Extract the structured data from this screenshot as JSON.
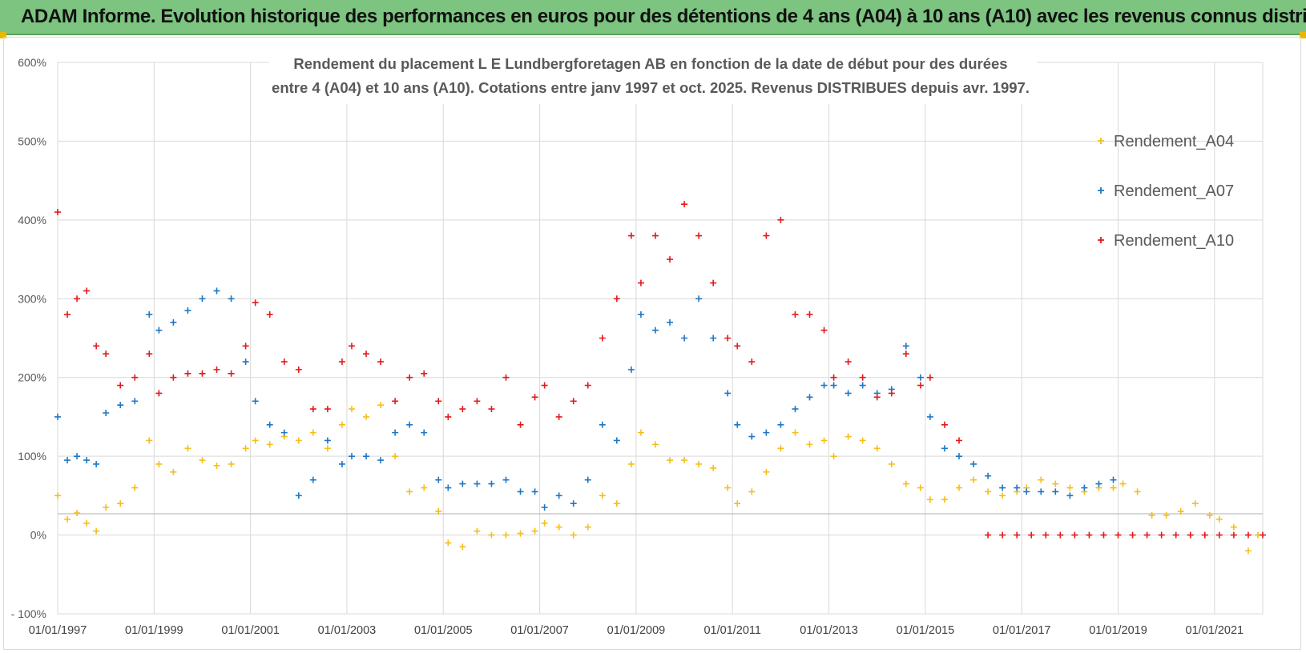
{
  "banner": {
    "title": "ADAM Informe. Evolution historique des performances en euros pour des détentions de 4 ans (A04) à 10 ans (A10) avec les revenus connus distribués"
  },
  "colors": {
    "banner_bg": "#7cc47f",
    "a04": "#f5be1b",
    "a07": "#1f77c4",
    "a10": "#e21a1c",
    "grid": "#d9d9d9"
  },
  "chart_data": {
    "type": "scatter",
    "title_line1": "Rendement du placement L E Lundbergforetagen AB en fonction de la date de début pour des durées",
    "title_line2": "entre 4 (A04) et 10 ans (A10). Cotations entre janv 1997 et oct. 2025. Revenus DISTRIBUES depuis avr.  1997.",
    "xlabel": "",
    "ylabel": "",
    "x_range": [
      1997.0,
      2022.0
    ],
    "ylim": [
      -100,
      600
    ],
    "y_ticks": [
      -100,
      0,
      100,
      200,
      300,
      400,
      500,
      600
    ],
    "y_tick_labels": [
      "- 100%",
      "0%",
      "100%",
      "200%",
      "300%",
      "400%",
      "500%",
      "600%"
    ],
    "x_ticks": [
      1997,
      1999,
      2001,
      2003,
      2005,
      2007,
      2009,
      2011,
      2013,
      2015,
      2017,
      2019,
      2021
    ],
    "x_tick_labels": [
      "01/01/1997",
      "01/01/1999",
      "01/01/2001",
      "01/01/2003",
      "01/01/2005",
      "01/01/2007",
      "01/01/2009",
      "01/01/2011",
      "01/01/2013",
      "01/01/2015",
      "01/01/2017",
      "01/01/2019",
      "01/01/2021"
    ],
    "legend_position": "right",
    "series": [
      {
        "name": "Rendement_A04",
        "key": "a04",
        "x": [
          1997.0,
          1997.2,
          1997.4,
          1997.6,
          1997.8,
          1998.0,
          1998.3,
          1998.6,
          1998.9,
          1999.1,
          1999.4,
          1999.7,
          2000.0,
          2000.3,
          2000.6,
          2000.9,
          2001.1,
          2001.4,
          2001.7,
          2002.0,
          2002.3,
          2002.6,
          2002.9,
          2003.1,
          2003.4,
          2003.7,
          2004.0,
          2004.3,
          2004.6,
          2004.9,
          2005.1,
          2005.4,
          2005.7,
          2006.0,
          2006.3,
          2006.6,
          2006.9,
          2007.1,
          2007.4,
          2007.7,
          2008.0,
          2008.3,
          2008.6,
          2008.9,
          2009.1,
          2009.4,
          2009.7,
          2010.0,
          2010.3,
          2010.6,
          2010.9,
          2011.1,
          2011.4,
          2011.7,
          2012.0,
          2012.3,
          2012.6,
          2012.9,
          2013.1,
          2013.4,
          2013.7,
          2014.0,
          2014.3,
          2014.6,
          2014.9,
          2015.1,
          2015.4,
          2015.7,
          2016.0,
          2016.3,
          2016.6,
          2016.9,
          2017.1,
          2017.4,
          2017.7,
          2018.0,
          2018.3,
          2018.6,
          2018.9,
          2019.1,
          2019.4,
          2019.7,
          2020.0,
          2020.3,
          2020.6,
          2020.9,
          2021.1,
          2021.4,
          2021.7,
          2021.9
        ],
        "y": [
          50,
          20,
          28,
          15,
          5,
          35,
          40,
          60,
          120,
          90,
          80,
          110,
          95,
          88,
          90,
          110,
          120,
          115,
          125,
          120,
          130,
          110,
          140,
          160,
          150,
          165,
          100,
          55,
          60,
          30,
          -10,
          -15,
          5,
          0,
          0,
          2,
          5,
          15,
          10,
          0,
          10,
          50,
          40,
          90,
          130,
          115,
          95,
          95,
          90,
          85,
          60,
          40,
          55,
          80,
          110,
          130,
          115,
          120,
          100,
          125,
          120,
          110,
          90,
          65,
          60,
          45,
          45,
          60,
          70,
          55,
          50,
          55,
          60,
          70,
          65,
          60,
          55,
          60,
          60,
          65,
          55,
          25,
          25,
          30,
          40,
          25,
          20,
          10,
          -20,
          0
        ]
      },
      {
        "name": "Rendement_A07",
        "key": "a07",
        "x": [
          1997.0,
          1997.2,
          1997.4,
          1997.6,
          1997.8,
          1998.0,
          1998.3,
          1998.6,
          1998.9,
          1999.1,
          1999.4,
          1999.7,
          2000.0,
          2000.3,
          2000.6,
          2000.9,
          2001.1,
          2001.4,
          2001.7,
          2002.0,
          2002.3,
          2002.6,
          2002.9,
          2003.1,
          2003.4,
          2003.7,
          2004.0,
          2004.3,
          2004.6,
          2004.9,
          2005.1,
          2005.4,
          2005.7,
          2006.0,
          2006.3,
          2006.6,
          2006.9,
          2007.1,
          2007.4,
          2007.7,
          2008.0,
          2008.3,
          2008.6,
          2008.9,
          2009.1,
          2009.4,
          2009.7,
          2010.0,
          2010.3,
          2010.6,
          2010.9,
          2011.1,
          2011.4,
          2011.7,
          2012.0,
          2012.3,
          2012.6,
          2012.9,
          2013.1,
          2013.4,
          2013.7,
          2014.0,
          2014.3,
          2014.6,
          2014.9,
          2015.1,
          2015.4,
          2015.7,
          2016.0,
          2016.3,
          2016.6,
          2016.9,
          2017.1,
          2017.4,
          2017.7,
          2018.0,
          2018.3,
          2018.6,
          2018.9
        ],
        "y": [
          150,
          95,
          100,
          95,
          90,
          155,
          165,
          170,
          280,
          260,
          270,
          285,
          300,
          310,
          300,
          220,
          170,
          140,
          130,
          50,
          70,
          120,
          90,
          100,
          100,
          95,
          130,
          140,
          130,
          70,
          60,
          65,
          65,
          65,
          70,
          55,
          55,
          35,
          50,
          40,
          70,
          140,
          120,
          210,
          280,
          260,
          270,
          250,
          300,
          250,
          180,
          140,
          125,
          130,
          140,
          160,
          175,
          190,
          190,
          180,
          190,
          180,
          185,
          240,
          200,
          150,
          110,
          100,
          90,
          75,
          60,
          60,
          55,
          55,
          55,
          50,
          60,
          65,
          70
        ]
      },
      {
        "name": "Rendement_A10",
        "key": "a10",
        "x": [
          1997.0,
          1997.2,
          1997.4,
          1997.6,
          1997.8,
          1998.0,
          1998.3,
          1998.6,
          1998.9,
          1999.1,
          1999.4,
          1999.7,
          2000.0,
          2000.3,
          2000.6,
          2000.9,
          2001.1,
          2001.4,
          2001.7,
          2002.0,
          2002.3,
          2002.6,
          2002.9,
          2003.1,
          2003.4,
          2003.7,
          2004.0,
          2004.3,
          2004.6,
          2004.9,
          2005.1,
          2005.4,
          2005.7,
          2006.0,
          2006.3,
          2006.6,
          2006.9,
          2007.1,
          2007.4,
          2007.7,
          2008.0,
          2008.3,
          2008.6,
          2008.9,
          2009.1,
          2009.4,
          2009.7,
          2010.0,
          2010.3,
          2010.6,
          2010.9,
          2011.1,
          2011.4,
          2011.7,
          2012.0,
          2012.3,
          2012.6,
          2012.9,
          2013.1,
          2013.4,
          2013.7,
          2014.0,
          2014.3,
          2014.6,
          2014.9,
          2015.1,
          2015.4,
          2015.7
        ],
        "y": [
          410,
          280,
          300,
          310,
          240,
          230,
          190,
          200,
          230,
          180,
          200,
          205,
          205,
          210,
          205,
          240,
          295,
          280,
          220,
          210,
          160,
          160,
          220,
          240,
          230,
          220,
          170,
          200,
          205,
          170,
          150,
          160,
          170,
          160,
          200,
          140,
          175,
          190,
          150,
          170,
          190,
          250,
          300,
          380,
          320,
          380,
          350,
          420,
          380,
          320,
          250,
          240,
          220,
          380,
          400,
          280,
          280,
          260,
          200,
          220,
          200,
          175,
          180,
          230,
          190,
          200,
          140,
          120
        ]
      },
      {
        "name": "Rendement_A10 (0%)",
        "key": "a10",
        "x": [
          2016.3,
          2016.6,
          2016.9,
          2017.2,
          2017.5,
          2017.8,
          2018.1,
          2018.4,
          2018.7,
          2019.0,
          2019.3,
          2019.6,
          2019.9,
          2020.2,
          2020.5,
          2020.8,
          2021.1,
          2021.4,
          2021.7,
          2022.0
        ],
        "y": [
          0,
          0,
          0,
          0,
          0,
          0,
          0,
          0,
          0,
          0,
          0,
          0,
          0,
          0,
          0,
          0,
          0,
          0,
          0,
          0
        ]
      }
    ]
  }
}
